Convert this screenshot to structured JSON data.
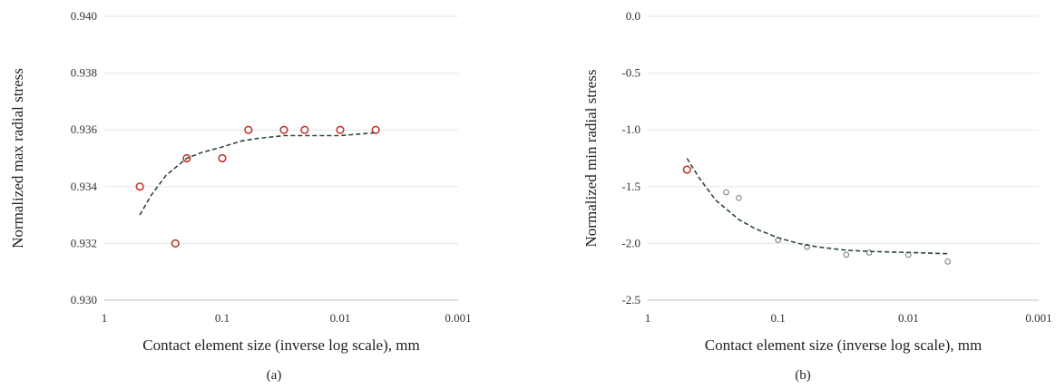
{
  "panel_labels": [
    "(a)",
    "(b)"
  ],
  "chart_data": [
    {
      "type": "scatter",
      "panel": "(a)",
      "title": "",
      "xlabel": "Contact element size (inverse log scale), mm",
      "ylabel": "Normalized max radial stress",
      "x_scale": "log-reversed",
      "xlim": [
        1,
        0.001
      ],
      "x_ticks": [
        "1",
        "0.1",
        "0.01",
        "0.001"
      ],
      "ylim": [
        0.93,
        0.94
      ],
      "y_ticks": [
        "0.930",
        "0.932",
        "0.934",
        "0.936",
        "0.938",
        "0.940"
      ],
      "grid": "horizontal",
      "series": [
        {
          "kind": "points",
          "marker": "hollow-circle",
          "color": "#c0392b",
          "x": [
            0.5,
            0.25,
            0.2,
            0.1,
            0.06,
            0.03,
            0.02,
            0.01,
            0.005
          ],
          "y": [
            0.934,
            0.932,
            0.935,
            0.935,
            0.936,
            0.936,
            0.936,
            0.936,
            0.936
          ]
        },
        {
          "kind": "fit",
          "style": "dashed",
          "color": "#2d4a3a",
          "x": [
            0.5,
            0.4,
            0.3,
            0.2,
            0.15,
            0.1,
            0.07,
            0.05,
            0.03,
            0.02,
            0.01,
            0.005
          ],
          "y": [
            0.933,
            0.9337,
            0.9344,
            0.935,
            0.9352,
            0.9354,
            0.9356,
            0.9357,
            0.9358,
            0.9358,
            0.9358,
            0.9359
          ]
        }
      ]
    },
    {
      "type": "scatter",
      "panel": "(b)",
      "title": "",
      "xlabel": "Contact element size (inverse log scale), mm",
      "ylabel": "Normalized min radial stress",
      "x_scale": "log-reversed",
      "xlim": [
        1,
        0.001
      ],
      "x_ticks": [
        "1",
        "0.1",
        "0.01",
        "0.001"
      ],
      "ylim": [
        -2.5,
        0.0
      ],
      "y_ticks": [
        "-2.5",
        "-2.0",
        "-1.5",
        "-1.0",
        "-0.5",
        "0.0"
      ],
      "grid": "horizontal",
      "series": [
        {
          "kind": "points",
          "marker": "hollow-circle",
          "color": "#c0392b",
          "x": [
            0.5
          ],
          "y": [
            -1.35
          ]
        },
        {
          "kind": "points",
          "marker": "small-hollow-circle",
          "color": "#777777",
          "x": [
            0.25,
            0.2,
            0.1,
            0.06,
            0.03,
            0.02,
            0.01,
            0.005
          ],
          "y": [
            -1.55,
            -1.6,
            -1.97,
            -2.03,
            -2.1,
            -2.08,
            -2.1,
            -2.16
          ]
        },
        {
          "kind": "fit",
          "style": "dashed",
          "color": "#2d4a3a",
          "x": [
            0.5,
            0.4,
            0.3,
            0.2,
            0.15,
            0.1,
            0.07,
            0.05,
            0.03,
            0.02,
            0.01,
            0.005
          ],
          "y": [
            -1.25,
            -1.43,
            -1.62,
            -1.79,
            -1.87,
            -1.95,
            -2.0,
            -2.03,
            -2.06,
            -2.07,
            -2.08,
            -2.09
          ]
        }
      ]
    }
  ]
}
